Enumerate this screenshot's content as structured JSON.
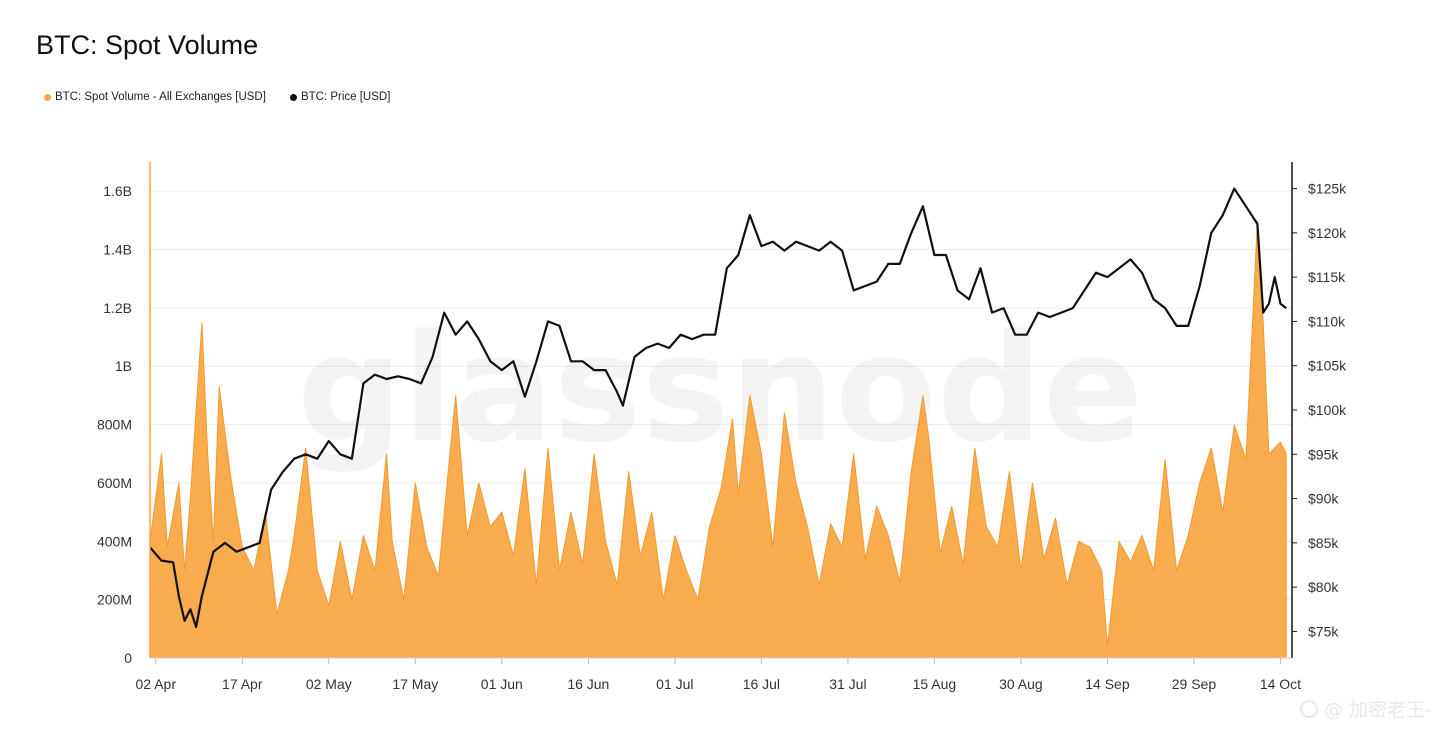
{
  "title": "BTC: Spot Volume",
  "legend": [
    {
      "label": "BTC: Spot Volume - All Exchanges [USD]",
      "color": "#f7a53f"
    },
    {
      "label": "BTC: Price [USD]",
      "color": "#111111"
    }
  ],
  "watermark": "glassnode",
  "footer_watermark": "@ 加密老王-",
  "chart_data": {
    "type": "area",
    "x_tick_labels": [
      "02 Apr",
      "17 Apr",
      "02 May",
      "17 May",
      "01 Jun",
      "16 Jun",
      "01 Jul",
      "16 Jul",
      "31 Jul",
      "15 Aug",
      "30 Aug",
      "14 Sep",
      "29 Sep",
      "14 Oct"
    ],
    "y_left_tick_labels": [
      "0",
      "200M",
      "400M",
      "600M",
      "800M",
      "1B",
      "1.2B",
      "1.4B",
      "1.6B"
    ],
    "y_left_range": [
      0,
      1700000000
    ],
    "y_right_tick_labels": [
      "$75k",
      "$80k",
      "$85k",
      "$90k",
      "$95k",
      "$100k",
      "$105k",
      "$110k",
      "$115k",
      "$120k",
      "$125k"
    ],
    "y_right_range": [
      72000,
      128000
    ],
    "x_range": [
      "2025-04-01",
      "2025-10-16"
    ],
    "grid": true,
    "legend_position": "top-left",
    "series": [
      {
        "name": "BTC: Spot Volume - All Exchanges [USD]",
        "axis": "left",
        "color": "#f7a53f",
        "points": [
          [
            "2025-04-01",
            400000000
          ],
          [
            "2025-04-03",
            700000000
          ],
          [
            "2025-04-04",
            380000000
          ],
          [
            "2025-04-06",
            600000000
          ],
          [
            "2025-04-07",
            300000000
          ],
          [
            "2025-04-08",
            550000000
          ],
          [
            "2025-04-10",
            1150000000
          ],
          [
            "2025-04-11",
            700000000
          ],
          [
            "2025-04-12",
            400000000
          ],
          [
            "2025-04-13",
            930000000
          ],
          [
            "2025-04-15",
            620000000
          ],
          [
            "2025-04-17",
            380000000
          ],
          [
            "2025-04-19",
            300000000
          ],
          [
            "2025-04-21",
            500000000
          ],
          [
            "2025-04-23",
            150000000
          ],
          [
            "2025-04-25",
            300000000
          ],
          [
            "2025-04-26",
            420000000
          ],
          [
            "2025-04-28",
            720000000
          ],
          [
            "2025-04-30",
            300000000
          ],
          [
            "2025-05-02",
            180000000
          ],
          [
            "2025-05-04",
            400000000
          ],
          [
            "2025-05-06",
            200000000
          ],
          [
            "2025-05-08",
            420000000
          ],
          [
            "2025-05-10",
            300000000
          ],
          [
            "2025-05-12",
            700000000
          ],
          [
            "2025-05-13",
            400000000
          ],
          [
            "2025-05-15",
            200000000
          ],
          [
            "2025-05-17",
            600000000
          ],
          [
            "2025-05-19",
            380000000
          ],
          [
            "2025-05-21",
            280000000
          ],
          [
            "2025-05-23",
            700000000
          ],
          [
            "2025-05-24",
            900000000
          ],
          [
            "2025-05-26",
            420000000
          ],
          [
            "2025-05-28",
            600000000
          ],
          [
            "2025-05-30",
            450000000
          ],
          [
            "2025-06-01",
            500000000
          ],
          [
            "2025-06-03",
            350000000
          ],
          [
            "2025-06-05",
            650000000
          ],
          [
            "2025-06-07",
            250000000
          ],
          [
            "2025-06-09",
            720000000
          ],
          [
            "2025-06-11",
            300000000
          ],
          [
            "2025-06-13",
            500000000
          ],
          [
            "2025-06-15",
            320000000
          ],
          [
            "2025-06-17",
            700000000
          ],
          [
            "2025-06-19",
            400000000
          ],
          [
            "2025-06-21",
            250000000
          ],
          [
            "2025-06-23",
            640000000
          ],
          [
            "2025-06-25",
            350000000
          ],
          [
            "2025-06-27",
            500000000
          ],
          [
            "2025-06-29",
            200000000
          ],
          [
            "2025-07-01",
            420000000
          ],
          [
            "2025-07-03",
            300000000
          ],
          [
            "2025-07-05",
            200000000
          ],
          [
            "2025-07-07",
            450000000
          ],
          [
            "2025-07-09",
            580000000
          ],
          [
            "2025-07-11",
            820000000
          ],
          [
            "2025-07-12",
            560000000
          ],
          [
            "2025-07-14",
            900000000
          ],
          [
            "2025-07-16",
            700000000
          ],
          [
            "2025-07-18",
            380000000
          ],
          [
            "2025-07-20",
            840000000
          ],
          [
            "2025-07-22",
            600000000
          ],
          [
            "2025-07-24",
            450000000
          ],
          [
            "2025-07-26",
            250000000
          ],
          [
            "2025-07-28",
            460000000
          ],
          [
            "2025-07-30",
            380000000
          ],
          [
            "2025-08-01",
            700000000
          ],
          [
            "2025-08-03",
            340000000
          ],
          [
            "2025-08-05",
            520000000
          ],
          [
            "2025-08-07",
            420000000
          ],
          [
            "2025-08-09",
            260000000
          ],
          [
            "2025-08-11",
            640000000
          ],
          [
            "2025-08-13",
            900000000
          ],
          [
            "2025-08-14",
            760000000
          ],
          [
            "2025-08-16",
            360000000
          ],
          [
            "2025-08-18",
            520000000
          ],
          [
            "2025-08-20",
            320000000
          ],
          [
            "2025-08-22",
            720000000
          ],
          [
            "2025-08-24",
            450000000
          ],
          [
            "2025-08-26",
            380000000
          ],
          [
            "2025-08-28",
            640000000
          ],
          [
            "2025-08-30",
            300000000
          ],
          [
            "2025-09-01",
            600000000
          ],
          [
            "2025-09-03",
            340000000
          ],
          [
            "2025-09-05",
            480000000
          ],
          [
            "2025-09-07",
            250000000
          ],
          [
            "2025-09-09",
            400000000
          ],
          [
            "2025-09-11",
            380000000
          ],
          [
            "2025-09-13",
            300000000
          ],
          [
            "2025-09-14",
            40000000
          ],
          [
            "2025-09-16",
            400000000
          ],
          [
            "2025-09-18",
            330000000
          ],
          [
            "2025-09-20",
            420000000
          ],
          [
            "2025-09-22",
            300000000
          ],
          [
            "2025-09-24",
            680000000
          ],
          [
            "2025-09-26",
            300000000
          ],
          [
            "2025-09-28",
            420000000
          ],
          [
            "2025-09-30",
            600000000
          ],
          [
            "2025-10-02",
            720000000
          ],
          [
            "2025-10-04",
            500000000
          ],
          [
            "2025-10-06",
            800000000
          ],
          [
            "2025-10-08",
            680000000
          ],
          [
            "2025-10-10",
            1500000000
          ],
          [
            "2025-10-11",
            1150000000
          ],
          [
            "2025-10-12",
            700000000
          ],
          [
            "2025-10-14",
            740000000
          ],
          [
            "2025-10-15",
            700000000
          ]
        ]
      },
      {
        "name": "BTC: Price [USD]",
        "axis": "right",
        "color": "#111111",
        "points": [
          [
            "2025-04-01",
            84500
          ],
          [
            "2025-04-03",
            83000
          ],
          [
            "2025-04-05",
            82800
          ],
          [
            "2025-04-06",
            79000
          ],
          [
            "2025-04-07",
            76200
          ],
          [
            "2025-04-08",
            77500
          ],
          [
            "2025-04-09",
            75500
          ],
          [
            "2025-04-10",
            79000
          ],
          [
            "2025-04-12",
            84000
          ],
          [
            "2025-04-14",
            85000
          ],
          [
            "2025-04-16",
            84000
          ],
          [
            "2025-04-18",
            84500
          ],
          [
            "2025-04-20",
            85000
          ],
          [
            "2025-04-22",
            91000
          ],
          [
            "2025-04-24",
            93000
          ],
          [
            "2025-04-26",
            94500
          ],
          [
            "2025-04-28",
            95000
          ],
          [
            "2025-04-30",
            94500
          ],
          [
            "2025-05-02",
            96500
          ],
          [
            "2025-05-04",
            95000
          ],
          [
            "2025-05-06",
            94500
          ],
          [
            "2025-05-08",
            103000
          ],
          [
            "2025-05-10",
            104000
          ],
          [
            "2025-05-12",
            103500
          ],
          [
            "2025-05-14",
            103800
          ],
          [
            "2025-05-16",
            103500
          ],
          [
            "2025-05-18",
            103000
          ],
          [
            "2025-05-20",
            106000
          ],
          [
            "2025-05-22",
            111000
          ],
          [
            "2025-05-24",
            108500
          ],
          [
            "2025-05-26",
            110000
          ],
          [
            "2025-05-28",
            108000
          ],
          [
            "2025-05-30",
            105500
          ],
          [
            "2025-06-01",
            104500
          ],
          [
            "2025-06-03",
            105500
          ],
          [
            "2025-06-05",
            101500
          ],
          [
            "2025-06-07",
            105500
          ],
          [
            "2025-06-09",
            110000
          ],
          [
            "2025-06-11",
            109500
          ],
          [
            "2025-06-13",
            105500
          ],
          [
            "2025-06-15",
            105500
          ],
          [
            "2025-06-17",
            104500
          ],
          [
            "2025-06-19",
            104500
          ],
          [
            "2025-06-21",
            102000
          ],
          [
            "2025-06-22",
            100500
          ],
          [
            "2025-06-24",
            106000
          ],
          [
            "2025-06-26",
            107000
          ],
          [
            "2025-06-28",
            107500
          ],
          [
            "2025-06-30",
            107000
          ],
          [
            "2025-07-02",
            108500
          ],
          [
            "2025-07-04",
            108000
          ],
          [
            "2025-07-06",
            108500
          ],
          [
            "2025-07-08",
            108500
          ],
          [
            "2025-07-10",
            116000
          ],
          [
            "2025-07-12",
            117500
          ],
          [
            "2025-07-14",
            122000
          ],
          [
            "2025-07-16",
            118500
          ],
          [
            "2025-07-18",
            119000
          ],
          [
            "2025-07-20",
            118000
          ],
          [
            "2025-07-22",
            119000
          ],
          [
            "2025-07-24",
            118500
          ],
          [
            "2025-07-26",
            118000
          ],
          [
            "2025-07-28",
            119000
          ],
          [
            "2025-07-30",
            118000
          ],
          [
            "2025-08-01",
            113500
          ],
          [
            "2025-08-03",
            114000
          ],
          [
            "2025-08-05",
            114500
          ],
          [
            "2025-08-07",
            116500
          ],
          [
            "2025-08-09",
            116500
          ],
          [
            "2025-08-11",
            120000
          ],
          [
            "2025-08-13",
            123000
          ],
          [
            "2025-08-15",
            117500
          ],
          [
            "2025-08-17",
            117500
          ],
          [
            "2025-08-19",
            113500
          ],
          [
            "2025-08-21",
            112500
          ],
          [
            "2025-08-23",
            116000
          ],
          [
            "2025-08-25",
            111000
          ],
          [
            "2025-08-27",
            111500
          ],
          [
            "2025-08-29",
            108500
          ],
          [
            "2025-08-31",
            108500
          ],
          [
            "2025-09-02",
            111000
          ],
          [
            "2025-09-04",
            110500
          ],
          [
            "2025-09-06",
            111000
          ],
          [
            "2025-09-08",
            111500
          ],
          [
            "2025-09-10",
            113500
          ],
          [
            "2025-09-12",
            115500
          ],
          [
            "2025-09-14",
            115000
          ],
          [
            "2025-09-16",
            116000
          ],
          [
            "2025-09-18",
            117000
          ],
          [
            "2025-09-20",
            115500
          ],
          [
            "2025-09-22",
            112500
          ],
          [
            "2025-09-24",
            111500
          ],
          [
            "2025-09-26",
            109500
          ],
          [
            "2025-09-28",
            109500
          ],
          [
            "2025-09-30",
            114000
          ],
          [
            "2025-10-02",
            120000
          ],
          [
            "2025-10-04",
            122000
          ],
          [
            "2025-10-06",
            125000
          ],
          [
            "2025-10-08",
            123000
          ],
          [
            "2025-10-10",
            121000
          ],
          [
            "2025-10-11",
            111000
          ],
          [
            "2025-10-12",
            112000
          ],
          [
            "2025-10-13",
            115000
          ],
          [
            "2025-10-14",
            112000
          ],
          [
            "2025-10-15",
            111500
          ]
        ]
      }
    ]
  }
}
